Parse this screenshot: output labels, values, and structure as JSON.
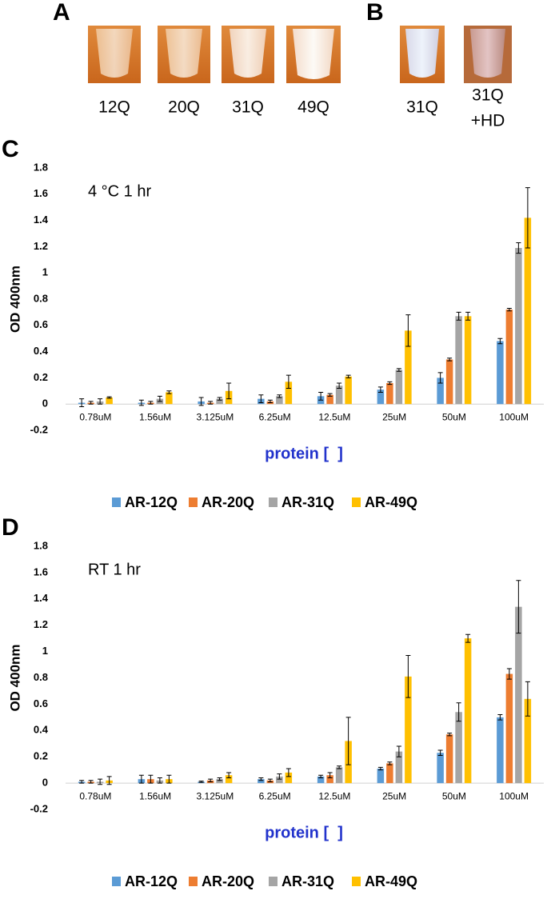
{
  "panel_a": {
    "letter": "A",
    "tubes": [
      [
        "12Q"
      ],
      [
        "20Q"
      ],
      [
        "31Q"
      ],
      [
        "49Q"
      ]
    ]
  },
  "panel_b": {
    "letter": "B",
    "tubes": [
      [
        "31Q"
      ],
      [
        "31Q",
        "+HD"
      ]
    ]
  },
  "chart_data": [
    {
      "type": "bar",
      "panel": "C",
      "annotation": "4 °C 1 hr",
      "ylabel": "OD 400nm",
      "xlabel": "protein [  ]",
      "categories": [
        "0.78uM",
        "1.56uM",
        "3.125uM",
        "6.25uM",
        "12.5uM",
        "25uM",
        "50uM",
        "100uM"
      ],
      "ylim": [
        -0.2,
        1.8
      ],
      "yticks": [
        -0.2,
        0,
        0.2,
        0.4,
        0.6,
        0.8,
        1,
        1.2,
        1.4,
        1.6,
        1.8
      ],
      "series": [
        {
          "name": "AR-12Q",
          "color": "#5b9bd5",
          "values": [
            0.01,
            0.01,
            0.02,
            0.04,
            0.06,
            0.11,
            0.2,
            0.48
          ],
          "errors": [
            0.03,
            0.02,
            0.03,
            0.03,
            0.03,
            0.02,
            0.04,
            0.02
          ]
        },
        {
          "name": "AR-20Q",
          "color": "#ed7d31",
          "values": [
            0.01,
            0.01,
            0.01,
            0.02,
            0.07,
            0.16,
            0.34,
            0.72
          ],
          "errors": [
            0.01,
            0.01,
            0.01,
            0.01,
            0.01,
            0.01,
            0.01,
            0.01
          ]
        },
        {
          "name": "AR-31Q",
          "color": "#a5a5a5",
          "values": [
            0.02,
            0.04,
            0.04,
            0.06,
            0.14,
            0.26,
            0.67,
            1.19
          ],
          "errors": [
            0.02,
            0.02,
            0.01,
            0.01,
            0.02,
            0.01,
            0.03,
            0.04
          ]
        },
        {
          "name": "AR-49Q",
          "color": "#ffc000",
          "values": [
            0.05,
            0.09,
            0.1,
            0.17,
            0.21,
            0.56,
            0.67,
            1.42
          ],
          "errors": [
            0.005,
            0.01,
            0.06,
            0.05,
            0.01,
            0.12,
            0.03,
            0.23
          ]
        }
      ]
    },
    {
      "type": "bar",
      "panel": "D",
      "annotation": "RT 1 hr",
      "ylabel": "OD 400nm",
      "xlabel": "protein [  ]",
      "categories": [
        "0.78uM",
        "1.56uM",
        "3.125uM",
        "6.25uM",
        "12.5uM",
        "25uM",
        "50uM",
        "100uM"
      ],
      "ylim": [
        -0.2,
        1.8
      ],
      "yticks": [
        -0.2,
        0,
        0.2,
        0.4,
        0.6,
        0.8,
        1,
        1.2,
        1.4,
        1.6,
        1.8
      ],
      "series": [
        {
          "name": "AR-12Q",
          "color": "#5b9bd5",
          "values": [
            0.01,
            0.03,
            0.01,
            0.03,
            0.05,
            0.11,
            0.23,
            0.5
          ],
          "errors": [
            0.01,
            0.03,
            0.005,
            0.01,
            0.01,
            0.01,
            0.02,
            0.02
          ]
        },
        {
          "name": "AR-20Q",
          "color": "#ed7d31",
          "values": [
            0.01,
            0.03,
            0.02,
            0.02,
            0.06,
            0.15,
            0.37,
            0.83
          ],
          "errors": [
            0.01,
            0.03,
            0.01,
            0.01,
            0.02,
            0.01,
            0.01,
            0.04
          ]
        },
        {
          "name": "AR-31Q",
          "color": "#a5a5a5",
          "values": [
            0.01,
            0.02,
            0.03,
            0.05,
            0.12,
            0.24,
            0.54,
            1.34
          ],
          "errors": [
            0.02,
            0.02,
            0.01,
            0.02,
            0.01,
            0.04,
            0.07,
            0.2
          ]
        },
        {
          "name": "AR-49Q",
          "color": "#ffc000",
          "values": [
            0.02,
            0.03,
            0.06,
            0.08,
            0.32,
            0.81,
            1.1,
            0.64
          ],
          "errors": [
            0.03,
            0.03,
            0.02,
            0.03,
            0.18,
            0.16,
            0.03,
            0.13
          ]
        }
      ]
    }
  ]
}
